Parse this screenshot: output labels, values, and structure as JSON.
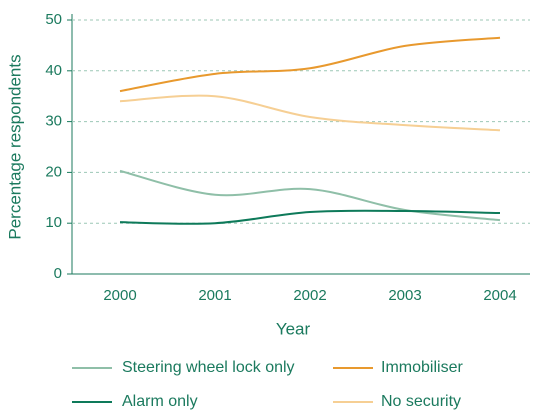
{
  "chart_data": {
    "type": "line",
    "x": [
      "2000",
      "2001",
      "2002",
      "2003",
      "2004"
    ],
    "xlabel": "Year",
    "ylabel": "Percentage respondents",
    "ylim": [
      0,
      50
    ],
    "yticks": [
      0,
      10,
      20,
      30,
      40,
      50
    ],
    "grid": true,
    "series": [
      {
        "name": "Steering wheel lock only",
        "color": "#8fbfa8",
        "values": [
          20.3,
          15.6,
          16.7,
          12.6,
          10.6
        ]
      },
      {
        "name": "Immobiliser",
        "color": "#e8992e",
        "values": [
          36.0,
          39.4,
          40.5,
          44.9,
          46.5
        ]
      },
      {
        "name": "Alarm only",
        "color": "#0e7a5a",
        "values": [
          10.2,
          10.0,
          12.2,
          12.4,
          12.0
        ]
      },
      {
        "name": "No security",
        "color": "#f6cf94",
        "values": [
          34.0,
          35.0,
          30.9,
          29.3,
          28.3
        ]
      }
    ]
  }
}
